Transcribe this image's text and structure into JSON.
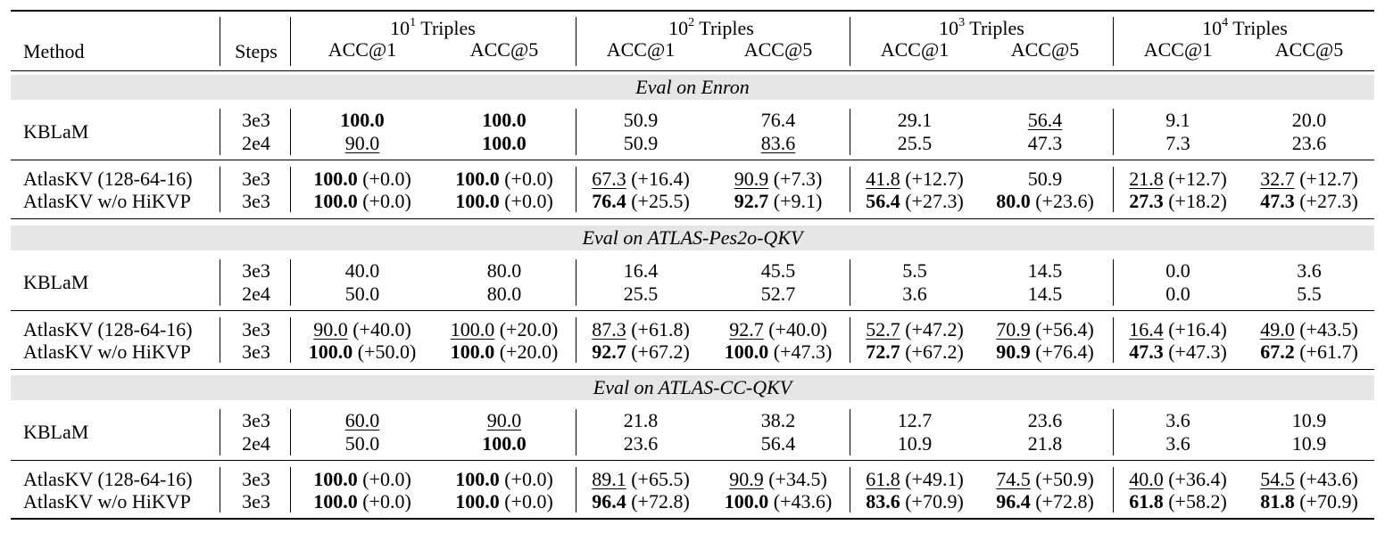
{
  "header": {
    "method_label": "Method",
    "steps_label": "Steps",
    "groups": [
      {
        "base": "10",
        "exp": "1",
        "suffix": " Triples"
      },
      {
        "base": "10",
        "exp": "2",
        "suffix": " Triples"
      },
      {
        "base": "10",
        "exp": "3",
        "suffix": " Triples"
      },
      {
        "base": "10",
        "exp": "4",
        "suffix": " Triples"
      }
    ],
    "sub_labels": [
      "ACC@1",
      "ACC@5",
      "ACC@1",
      "ACC@5",
      "ACC@1",
      "ACC@5",
      "ACC@1",
      "ACC@5"
    ]
  },
  "sections": [
    {
      "title": "Eval on Enron",
      "kb": {
        "method": "KBLaM",
        "rows": [
          {
            "steps": "3e3",
            "cells": [
              {
                "v": "100.0",
                "s": "b"
              },
              {
                "v": "100.0",
                "s": "b"
              },
              {
                "v": "50.9",
                "s": ""
              },
              {
                "v": "76.4",
                "s": ""
              },
              {
                "v": "29.1",
                "s": ""
              },
              {
                "v": "56.4",
                "s": "u"
              },
              {
                "v": "9.1",
                "s": ""
              },
              {
                "v": "20.0",
                "s": ""
              }
            ]
          },
          {
            "steps": "2e4",
            "cells": [
              {
                "v": "90.0",
                "s": "u"
              },
              {
                "v": "100.0",
                "s": "b"
              },
              {
                "v": "50.9",
                "s": ""
              },
              {
                "v": "83.6",
                "s": "u"
              },
              {
                "v": "25.5",
                "s": ""
              },
              {
                "v": "47.3",
                "s": ""
              },
              {
                "v": "7.3",
                "s": ""
              },
              {
                "v": "23.6",
                "s": ""
              }
            ]
          }
        ]
      },
      "atlas": [
        {
          "method": "AtlasKV (128-64-16)",
          "steps": "3e3",
          "cells": [
            {
              "v": "100.0",
              "s": "b",
              "d": " (+0.0)"
            },
            {
              "v": "100.0",
              "s": "b",
              "d": " (+0.0)"
            },
            {
              "v": "67.3",
              "s": "u",
              "d": " (+16.4)"
            },
            {
              "v": "90.9",
              "s": "u",
              "d": " (+7.3)"
            },
            {
              "v": "41.8",
              "s": "u",
              "d": " (+12.7)"
            },
            {
              "v": "50.9",
              "s": "",
              "d": ""
            },
            {
              "v": "21.8",
              "s": "u",
              "d": " (+12.7)"
            },
            {
              "v": "32.7",
              "s": "u",
              "d": " (+12.7)"
            }
          ]
        },
        {
          "method": "AtlasKV w/o HiKVP",
          "steps": "3e3",
          "cells": [
            {
              "v": "100.0",
              "s": "b",
              "d": " (+0.0)"
            },
            {
              "v": "100.0",
              "s": "b",
              "d": " (+0.0)"
            },
            {
              "v": "76.4",
              "s": "b",
              "d": " (+25.5)"
            },
            {
              "v": "92.7",
              "s": "b",
              "d": " (+9.1)"
            },
            {
              "v": "56.4",
              "s": "b",
              "d": " (+27.3)"
            },
            {
              "v": "80.0",
              "s": "b",
              "d": " (+23.6)"
            },
            {
              "v": "27.3",
              "s": "b",
              "d": " (+18.2)"
            },
            {
              "v": "47.3",
              "s": "b",
              "d": " (+27.3)"
            }
          ]
        }
      ]
    },
    {
      "title": "Eval on ATLAS-Pes2o-QKV",
      "kb": {
        "method": "KBLaM",
        "rows": [
          {
            "steps": "3e3",
            "cells": [
              {
                "v": "40.0",
                "s": ""
              },
              {
                "v": "80.0",
                "s": ""
              },
              {
                "v": "16.4",
                "s": ""
              },
              {
                "v": "45.5",
                "s": ""
              },
              {
                "v": "5.5",
                "s": ""
              },
              {
                "v": "14.5",
                "s": ""
              },
              {
                "v": "0.0",
                "s": ""
              },
              {
                "v": "3.6",
                "s": ""
              }
            ]
          },
          {
            "steps": "2e4",
            "cells": [
              {
                "v": "50.0",
                "s": ""
              },
              {
                "v": "80.0",
                "s": ""
              },
              {
                "v": "25.5",
                "s": ""
              },
              {
                "v": "52.7",
                "s": ""
              },
              {
                "v": "3.6",
                "s": ""
              },
              {
                "v": "14.5",
                "s": ""
              },
              {
                "v": "0.0",
                "s": ""
              },
              {
                "v": "5.5",
                "s": ""
              }
            ]
          }
        ]
      },
      "atlas": [
        {
          "method": "AtlasKV (128-64-16)",
          "steps": "3e3",
          "cells": [
            {
              "v": "90.0",
              "s": "u",
              "d": " (+40.0)"
            },
            {
              "v": "100.0",
              "s": "u",
              "d": " (+20.0)"
            },
            {
              "v": "87.3",
              "s": "u",
              "d": " (+61.8)"
            },
            {
              "v": "92.7",
              "s": "u",
              "d": " (+40.0)"
            },
            {
              "v": "52.7",
              "s": "u",
              "d": " (+47.2)"
            },
            {
              "v": "70.9",
              "s": "u",
              "d": " (+56.4)"
            },
            {
              "v": "16.4",
              "s": "u",
              "d": " (+16.4)"
            },
            {
              "v": "49.0",
              "s": "u",
              "d": " (+43.5)"
            }
          ]
        },
        {
          "method": "AtlasKV w/o HiKVP",
          "steps": "3e3",
          "cells": [
            {
              "v": "100.0",
              "s": "b",
              "d": " (+50.0)"
            },
            {
              "v": "100.0",
              "s": "b",
              "d": " (+20.0)"
            },
            {
              "v": "92.7",
              "s": "b",
              "d": " (+67.2)"
            },
            {
              "v": "100.0",
              "s": "b",
              "d": " (+47.3)"
            },
            {
              "v": "72.7",
              "s": "b",
              "d": " (+67.2)"
            },
            {
              "v": "90.9",
              "s": "b",
              "d": " (+76.4)"
            },
            {
              "v": "47.3",
              "s": "b",
              "d": " (+47.3)"
            },
            {
              "v": "67.2",
              "s": "b",
              "d": " (+61.7)"
            }
          ]
        }
      ]
    },
    {
      "title": "Eval on ATLAS-CC-QKV",
      "kb": {
        "method": "KBLaM",
        "rows": [
          {
            "steps": "3e3",
            "cells": [
              {
                "v": "60.0",
                "s": "u"
              },
              {
                "v": "90.0",
                "s": "u"
              },
              {
                "v": "21.8",
                "s": ""
              },
              {
                "v": "38.2",
                "s": ""
              },
              {
                "v": "12.7",
                "s": ""
              },
              {
                "v": "23.6",
                "s": ""
              },
              {
                "v": "3.6",
                "s": ""
              },
              {
                "v": "10.9",
                "s": ""
              }
            ]
          },
          {
            "steps": "2e4",
            "cells": [
              {
                "v": "50.0",
                "s": ""
              },
              {
                "v": "100.0",
                "s": "b"
              },
              {
                "v": "23.6",
                "s": ""
              },
              {
                "v": "56.4",
                "s": ""
              },
              {
                "v": "10.9",
                "s": ""
              },
              {
                "v": "21.8",
                "s": ""
              },
              {
                "v": "3.6",
                "s": ""
              },
              {
                "v": "10.9",
                "s": ""
              }
            ]
          }
        ]
      },
      "atlas": [
        {
          "method": "AtlasKV (128-64-16)",
          "steps": "3e3",
          "cells": [
            {
              "v": "100.0",
              "s": "b",
              "d": " (+0.0)"
            },
            {
              "v": "100.0",
              "s": "b",
              "d": " (+0.0)"
            },
            {
              "v": "89.1",
              "s": "u",
              "d": " (+65.5)"
            },
            {
              "v": "90.9",
              "s": "u",
              "d": " (+34.5)"
            },
            {
              "v": "61.8",
              "s": "u",
              "d": " (+49.1)"
            },
            {
              "v": "74.5",
              "s": "u",
              "d": " (+50.9)"
            },
            {
              "v": "40.0",
              "s": "u",
              "d": " (+36.4)"
            },
            {
              "v": "54.5",
              "s": "u",
              "d": " (+43.6)"
            }
          ]
        },
        {
          "method": "AtlasKV w/o HiKVP",
          "steps": "3e3",
          "cells": [
            {
              "v": "100.0",
              "s": "b",
              "d": " (+0.0)"
            },
            {
              "v": "100.0",
              "s": "b",
              "d": " (+0.0)"
            },
            {
              "v": "96.4",
              "s": "b",
              "d": " (+72.8)"
            },
            {
              "v": "100.0",
              "s": "b",
              "d": " (+43.6)"
            },
            {
              "v": "83.6",
              "s": "b",
              "d": " (+70.9)"
            },
            {
              "v": "96.4",
              "s": "b",
              "d": " (+72.8)"
            },
            {
              "v": "61.8",
              "s": "b",
              "d": " (+58.2)"
            },
            {
              "v": "81.8",
              "s": "b",
              "d": " (+70.9)"
            }
          ]
        }
      ]
    }
  ]
}
